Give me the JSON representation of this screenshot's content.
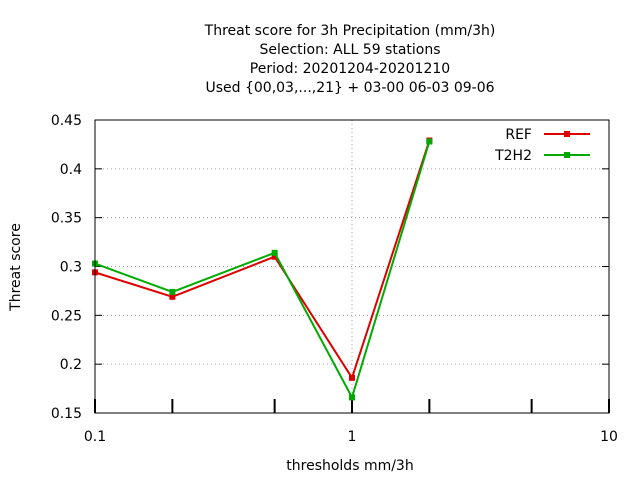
{
  "chart_data": {
    "type": "line",
    "title_lines": [
      "Threat score  for 3h Precipitation (mm/3h)",
      "Selection: ALL     59 stations",
      "Period: 20201204-20201210",
      "Used {00,03,...,21} + 03-00 06-03 09-06"
    ],
    "xlabel": "thresholds mm/3h",
    "ylabel": "Threat score",
    "x_scale": "log",
    "xlim": [
      0.1,
      10
    ],
    "ylim": [
      0.15,
      0.45
    ],
    "x_ticks": [
      0.1,
      1,
      10
    ],
    "x_tick_labels": [
      "0.1",
      "1",
      "10"
    ],
    "x_minor_ticks": [
      0.2,
      0.5,
      2,
      5
    ],
    "y_ticks": [
      0.15,
      0.2,
      0.25,
      0.3,
      0.35,
      0.4,
      0.45
    ],
    "y_tick_labels": [
      "0.15",
      "0.2",
      "0.25",
      "0.3",
      "0.35",
      "0.4",
      "0.45"
    ],
    "grid": true,
    "legend_position": "top-right",
    "series": [
      {
        "name": "REF",
        "color": "#dd0000",
        "x": [
          0.1,
          0.2,
          0.5,
          1,
          2
        ],
        "y": [
          0.294,
          0.269,
          0.31,
          0.186,
          0.429
        ]
      },
      {
        "name": "T2H2",
        "color": "#00aa00",
        "x": [
          0.1,
          0.2,
          0.5,
          1,
          2
        ],
        "y": [
          0.303,
          0.274,
          0.314,
          0.166,
          0.428
        ]
      }
    ]
  }
}
